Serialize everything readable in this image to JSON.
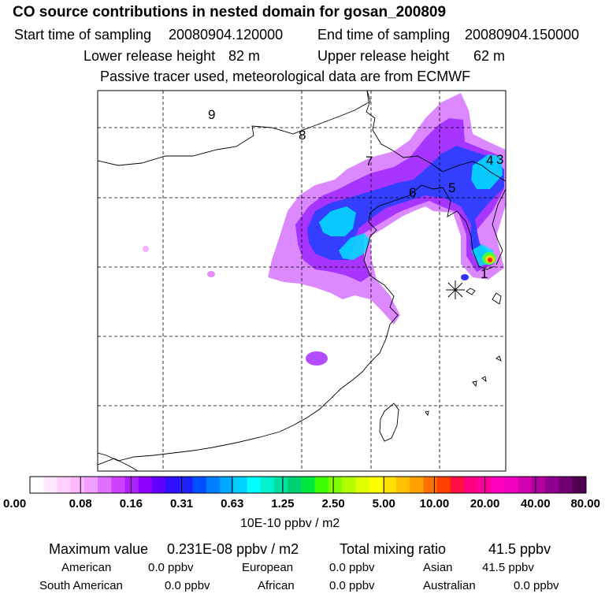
{
  "header": {
    "title": "CO  source contributions in nested domain for gosan_200809",
    "start_label": "Start time of sampling",
    "start_value": "20080904.120000",
    "end_label": "End time of sampling",
    "end_value": "20080904.150000",
    "lower_label": "Lower release height",
    "lower_value": "82 m",
    "upper_label": "Upper release height",
    "upper_value": "62 m",
    "subtitle": "Passive tracer used, meteorological data are from ECMWF"
  },
  "map": {
    "trajectory_labels": [
      "1",
      "3",
      "4",
      "5",
      "6",
      "7",
      "8",
      "9"
    ],
    "receptor_marker": "Gosan receptor"
  },
  "colorbar": {
    "ticks": [
      "0.00",
      "0.08",
      "0.16",
      "0.31",
      "0.63",
      "1.25",
      "2.50",
      "5.00",
      "10.00",
      "20.00",
      "40.00",
      "80.00"
    ],
    "unit": "10E-10 ppbv / m2",
    "colors": [
      "#ffffff",
      "#ffe8ff",
      "#ffd0ff",
      "#ffb8ff",
      "#f0a0ff",
      "#e070ff",
      "#d040ff",
      "#b020ff",
      "#9000ff",
      "#6000ff",
      "#3010ff",
      "#2020ff",
      "#0050ff",
      "#0080ff",
      "#00a8ff",
      "#00d0ff",
      "#00ffff",
      "#00f0d0",
      "#00e0a0",
      "#00d070",
      "#00e840",
      "#40ff00",
      "#80ff00",
      "#b0ff00",
      "#e0ff00",
      "#ffff00",
      "#ffe000",
      "#ffc000",
      "#ffa000",
      "#ff7000",
      "#ff4000",
      "#ff1040",
      "#ff0080",
      "#ff00a0",
      "#ff00c0",
      "#f000c0",
      "#d000b0",
      "#b000a0",
      "#900090",
      "#700070",
      "#500050"
    ]
  },
  "stats": {
    "max_label": "Maximum value",
    "max_value": "0.231E-08 ppbv / m2",
    "total_label": "Total mixing ratio",
    "total_value": "41.5 ppbv"
  },
  "regions": [
    {
      "name": "American",
      "value": "0.0 ppbv"
    },
    {
      "name": "European",
      "value": "0.0 ppbv"
    },
    {
      "name": "Asian",
      "value": "41.5 ppbv"
    },
    {
      "name": "South American",
      "value": "0.0 ppbv"
    },
    {
      "name": "African",
      "value": "0.0 ppbv"
    },
    {
      "name": "Australian",
      "value": "0.0 ppbv"
    }
  ]
}
